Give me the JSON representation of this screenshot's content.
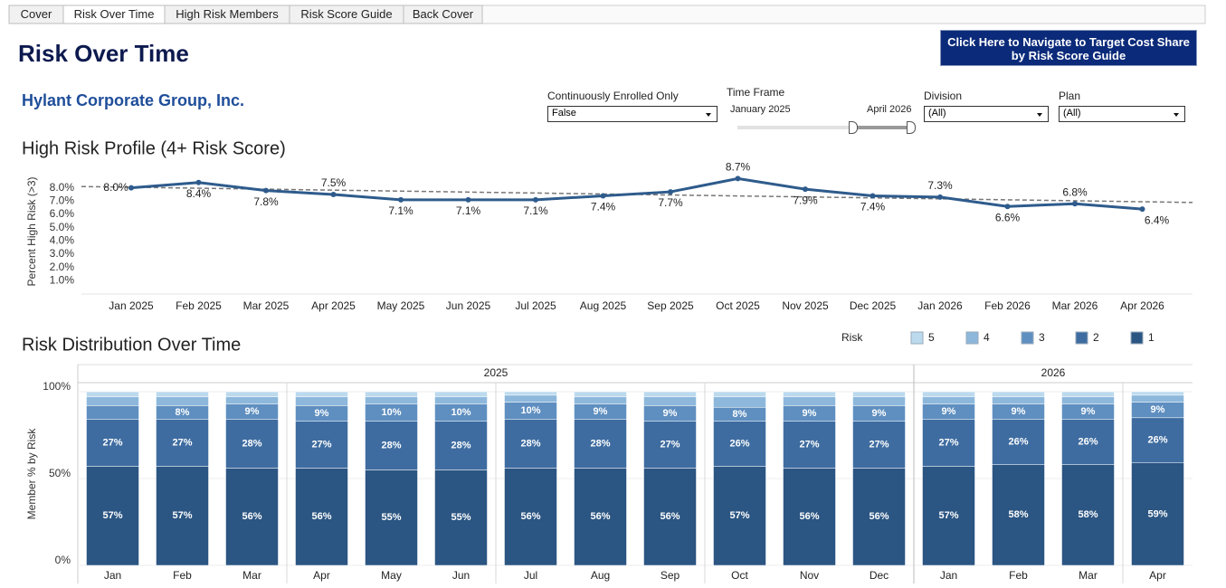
{
  "tabs": [
    "Cover",
    "Risk Over Time",
    "High Risk Members",
    "Risk Score Guide",
    "Back Cover"
  ],
  "header": {
    "title": "Risk Over Time",
    "company": "Hylant Corporate Group, Inc.",
    "button": "Click Here to Navigate to Target Cost Share by Risk Score Guide"
  },
  "filters": [
    {
      "label": "Continuously Enrolled Only",
      "value": "False"
    },
    {
      "label": "Division",
      "value": "(All)"
    },
    {
      "label": "Plan",
      "value": "(All)"
    }
  ],
  "time_frame": {
    "label": "Time Frame",
    "start": "January 2025",
    "end": "April 2026"
  },
  "chart_data": [
    {
      "type": "line",
      "title": "High Risk Profile (4+ Risk Score)",
      "y_label": "Percent High Risk (>3)",
      "categories": [
        "Jan 2025",
        "Feb 2025",
        "Mar 2025",
        "Apr 2025",
        "May 2025",
        "Jun 2025",
        "Jul 2025",
        "Aug 2025",
        "Sep 2025",
        "Oct 2025",
        "Nov 2025",
        "Dec 2025",
        "Jan 2026",
        "Feb 2026",
        "Mar 2026",
        "Apr 2026"
      ],
      "values": [
        8.0,
        8.4,
        7.8,
        7.5,
        7.1,
        7.1,
        7.1,
        7.4,
        7.7,
        8.7,
        7.9,
        7.4,
        7.3,
        6.6,
        6.8,
        6.4
      ],
      "value_labels": [
        "8.0%",
        "8.4%",
        "7.8%",
        "7.5%",
        "7.1%",
        "7.1%",
        "7.1%",
        "7.4%",
        "7.7%",
        "8.7%",
        "7.9%",
        "7.4%",
        "7.3%",
        "6.6%",
        "6.8%",
        "6.4%"
      ],
      "color": "#2e5b8c",
      "trend": [
        8.1,
        6.9
      ],
      "trend_color": "#777777",
      "ylim": [
        0,
        9
      ],
      "yticks": [
        {
          "value": 1,
          "label": "1.0%"
        },
        {
          "value": 2,
          "label": "2.0%"
        },
        {
          "value": 3,
          "label": "3.0%"
        },
        {
          "value": 4,
          "label": "4.0%"
        },
        {
          "value": 5,
          "label": "5.0%"
        },
        {
          "value": 6,
          "label": "6.0%"
        },
        {
          "value": 7,
          "label": "7.0%"
        },
        {
          "value": 8,
          "label": "8.0%"
        }
      ],
      "grid": false
    },
    {
      "type": "stacked_bar",
      "title": "Risk Distribution Over Time",
      "y_label": "Member % by Risk",
      "legend_title": "Risk",
      "groups": [
        {
          "label": "2025",
          "count": 12
        },
        {
          "label": "2026",
          "count": 4
        }
      ],
      "categories": [
        "Jan",
        "Feb",
        "Mar",
        "Apr",
        "May",
        "Jun",
        "Jul",
        "Aug",
        "Sep",
        "Oct",
        "Nov",
        "Dec",
        "Jan",
        "Feb",
        "Mar",
        "Apr"
      ],
      "series": [
        {
          "name": "5",
          "color": "#bcdaee",
          "values": [
            3,
            3,
            3,
            3,
            3,
            3,
            2,
            3,
            3,
            3,
            3,
            3,
            3,
            3,
            3,
            2
          ]
        },
        {
          "name": "4",
          "color": "#8db8dc",
          "values": [
            5,
            5,
            4,
            5,
            4,
            4,
            4,
            4,
            5,
            6,
            5,
            5,
            4,
            4,
            4,
            4
          ]
        },
        {
          "name": "3",
          "color": "#5f8fc0",
          "values": [
            8,
            8,
            9,
            9,
            10,
            10,
            10,
            9,
            9,
            8,
            9,
            9,
            9,
            9,
            9,
            9
          ],
          "value_labels": [
            null,
            "8%",
            "9%",
            "9%",
            "10%",
            "10%",
            "10%",
            "9%",
            "9%",
            "8%",
            "9%",
            "9%",
            "9%",
            "9%",
            "9%",
            "9%"
          ]
        },
        {
          "name": "2",
          "color": "#3e6ca0",
          "values": [
            27,
            27,
            28,
            27,
            28,
            28,
            28,
            28,
            27,
            26,
            27,
            27,
            27,
            26,
            26,
            26
          ],
          "value_labels": [
            "27%",
            "27%",
            "28%",
            "27%",
            "28%",
            "28%",
            "28%",
            "28%",
            "27%",
            "26%",
            "27%",
            "27%",
            "27%",
            "26%",
            "26%",
            "26%"
          ]
        },
        {
          "name": "1",
          "color": "#2b5582",
          "values": [
            57,
            57,
            56,
            56,
            55,
            55,
            56,
            56,
            56,
            57,
            56,
            56,
            57,
            58,
            58,
            59
          ],
          "value_labels": [
            "57%",
            "57%",
            "56%",
            "56%",
            "55%",
            "55%",
            "56%",
            "56%",
            "56%",
            "57%",
            "56%",
            "56%",
            "57%",
            "58%",
            "58%",
            "59%"
          ]
        }
      ],
      "ylim": [
        0,
        100
      ],
      "yticks": [
        {
          "value": 0,
          "label": "0%"
        },
        {
          "value": 50,
          "label": "50%"
        },
        {
          "value": 100,
          "label": "100%"
        }
      ],
      "grid": true
    }
  ]
}
